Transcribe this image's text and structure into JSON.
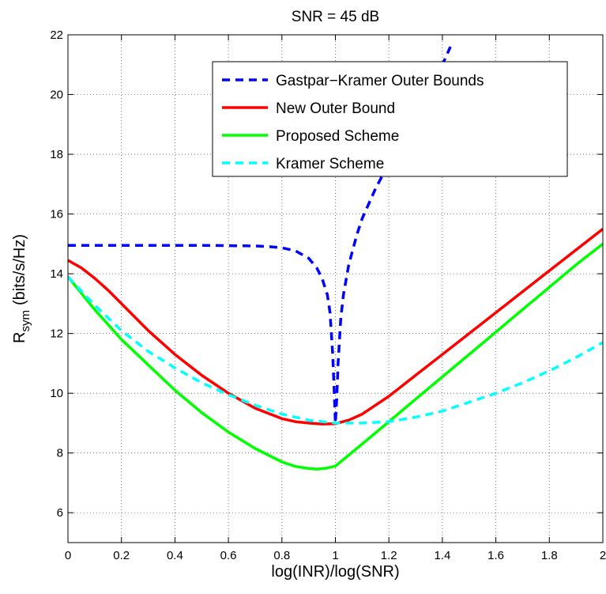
{
  "chart_data": {
    "type": "line",
    "title": "SNR = 45 dB",
    "xlabel": "log(INR)/log(SNR)",
    "ylabel": {
      "main": "R",
      "sub": "sym",
      "unit": "(bits/s/Hz)"
    },
    "xlim": [
      0,
      2
    ],
    "ylim": [
      5,
      22
    ],
    "xticks": [
      0,
      0.2,
      0.4,
      0.6,
      0.8,
      1,
      1.2,
      1.4,
      1.6,
      1.8,
      2
    ],
    "xtick_labels": [
      "0",
      "0.2",
      "0.4",
      "0.6",
      "0.8",
      "1",
      "1.2",
      "1.4",
      "1.6",
      "1.8",
      "2"
    ],
    "yticks": [
      6,
      8,
      10,
      12,
      14,
      16,
      18,
      20,
      22
    ],
    "ytick_labels": [
      "6",
      "8",
      "10",
      "12",
      "14",
      "16",
      "18",
      "20",
      "22"
    ],
    "grid": true,
    "legend_position": "top-right",
    "series": [
      {
        "name": "Gastpar−Kramer Outer Bounds",
        "color": "#0000ff",
        "style": "dashed",
        "x": [
          0,
          0.2,
          0.4,
          0.5,
          0.6,
          0.7,
          0.75,
          0.8,
          0.85,
          0.9,
          0.93,
          0.95,
          0.97,
          0.98,
          0.99,
          0.995,
          1.0,
          1.005,
          1.01,
          1.02,
          1.03,
          1.05,
          1.08,
          1.1,
          1.15,
          1.2,
          1.25,
          1.3,
          1.36,
          1.4,
          1.43
        ],
        "y": [
          14.95,
          14.95,
          14.95,
          14.95,
          14.94,
          14.93,
          14.91,
          14.87,
          14.77,
          14.52,
          14.2,
          13.85,
          13.3,
          12.7,
          11.3,
          10.2,
          9.0,
          9.8,
          11.0,
          12.5,
          13.3,
          14.3,
          15.3,
          15.85,
          16.85,
          17.7,
          18.5,
          19.3,
          20.3,
          21.0,
          21.6
        ]
      },
      {
        "name": "New Outer Bound",
        "color": "#ff0000",
        "style": "solid",
        "x": [
          0,
          0.05,
          0.1,
          0.15,
          0.2,
          0.3,
          0.4,
          0.5,
          0.6,
          0.7,
          0.8,
          0.85,
          0.9,
          0.95,
          1.0,
          1.05,
          1.1,
          1.2,
          1.3,
          1.4,
          1.5,
          1.6,
          1.7,
          1.8,
          1.9,
          2.0
        ],
        "y": [
          14.45,
          14.2,
          13.85,
          13.45,
          13.0,
          12.1,
          11.3,
          10.6,
          10.0,
          9.5,
          9.15,
          9.05,
          9.0,
          8.97,
          8.98,
          9.1,
          9.3,
          9.9,
          10.6,
          11.3,
          12.0,
          12.7,
          13.4,
          14.1,
          14.8,
          15.5
        ]
      },
      {
        "name": "Proposed Scheme",
        "color": "#00ff00",
        "style": "solid",
        "x": [
          0,
          0.1,
          0.2,
          0.3,
          0.4,
          0.5,
          0.6,
          0.7,
          0.8,
          0.85,
          0.9,
          0.93,
          0.96,
          1.0,
          1.1,
          1.2,
          1.3,
          1.4,
          1.5,
          1.6,
          1.7,
          1.8,
          1.9,
          2.0
        ],
        "y": [
          13.9,
          12.8,
          11.8,
          10.95,
          10.1,
          9.35,
          8.7,
          8.15,
          7.7,
          7.55,
          7.48,
          7.46,
          7.48,
          7.56,
          8.3,
          9.05,
          9.8,
          10.55,
          11.3,
          12.05,
          12.8,
          13.55,
          14.3,
          15.0
        ]
      },
      {
        "name": "Kramer Scheme",
        "color": "#00ffff",
        "style": "dashed",
        "x": [
          0,
          0.1,
          0.2,
          0.3,
          0.4,
          0.5,
          0.6,
          0.7,
          0.8,
          0.9,
          1.0,
          1.1,
          1.2,
          1.3,
          1.4,
          1.5,
          1.6,
          1.7,
          1.8,
          1.9,
          2.0
        ],
        "y": [
          13.9,
          12.95,
          12.1,
          11.4,
          10.85,
          10.35,
          9.95,
          9.6,
          9.3,
          9.1,
          9.0,
          9.0,
          9.05,
          9.2,
          9.4,
          9.7,
          10.0,
          10.35,
          10.75,
          11.2,
          11.7
        ]
      }
    ]
  }
}
